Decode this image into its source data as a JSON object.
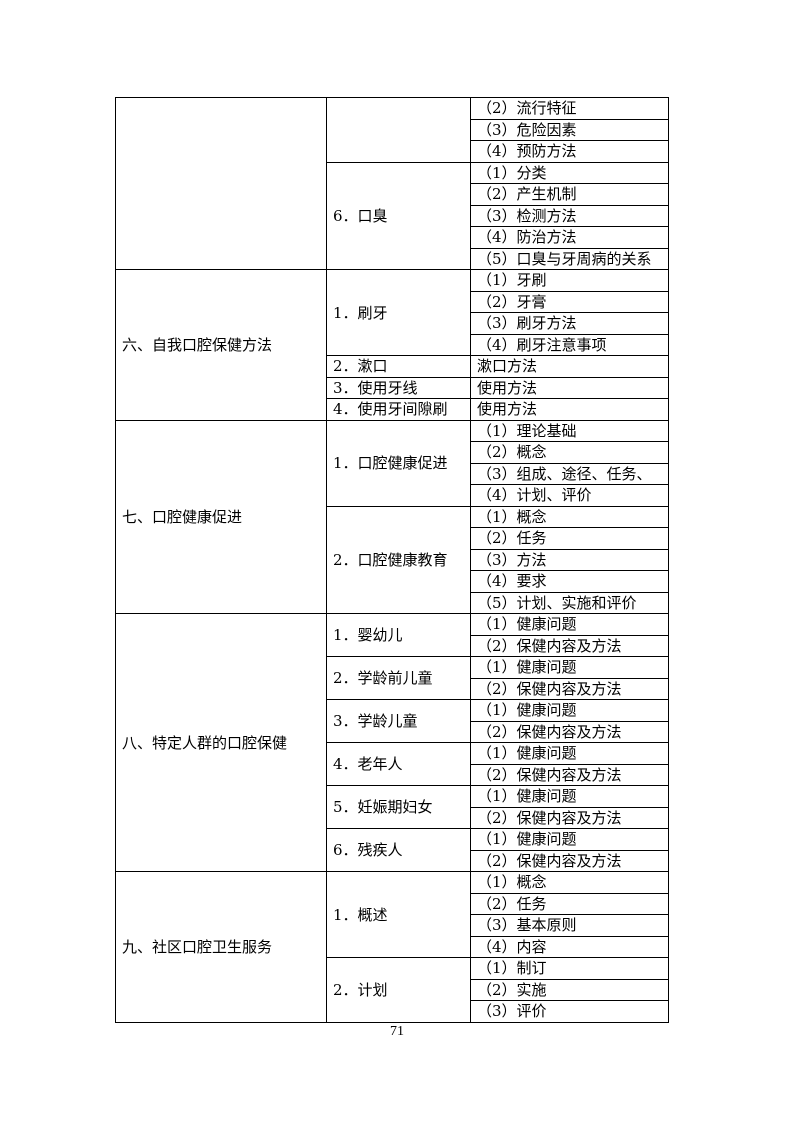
{
  "page_number": "71",
  "table": {
    "sections": [
      {
        "title": "",
        "groups": [
          {
            "label": "",
            "items": [
              "（2）流行特征",
              "（3）危险因素",
              "（4）预防方法"
            ]
          },
          {
            "label": "6．口臭",
            "items": [
              "（1）分类",
              "（2）产生机制",
              "（3）检测方法",
              "（4）防治方法",
              "（5）口臭与牙周病的关系"
            ]
          }
        ]
      },
      {
        "title": "六、自我口腔保健方法",
        "groups": [
          {
            "label": "1．刷牙",
            "items": [
              "（1）牙刷",
              "（2）牙膏",
              "（3）刷牙方法",
              "（4）刷牙注意事项"
            ]
          },
          {
            "label": "2．漱口",
            "items": [
              "漱口方法"
            ]
          },
          {
            "label": "3．使用牙线",
            "items": [
              "使用方法"
            ]
          },
          {
            "label": "4．使用牙间隙刷",
            "items": [
              "使用方法"
            ]
          }
        ]
      },
      {
        "title": "七、口腔健康促进",
        "groups": [
          {
            "label": "1．口腔健康促进",
            "items": [
              "（1）理论基础",
              "（2）概念",
              "（3）组成、途径、任务、",
              "（4）计划、评价"
            ]
          },
          {
            "label": "2．口腔健康教育",
            "items": [
              "（1）概念",
              "（2）任务",
              "（3）方法",
              "（4）要求",
              "（5）计划、实施和评价"
            ]
          }
        ]
      },
      {
        "title": "八、特定人群的口腔保健",
        "groups": [
          {
            "label": "1．婴幼儿",
            "items": [
              "（1）健康问题",
              "（2）保健内容及方法"
            ]
          },
          {
            "label": "2．学龄前儿童",
            "items": [
              "（1）健康问题",
              "（2）保健内容及方法"
            ]
          },
          {
            "label": "3．学龄儿童",
            "items": [
              "（1）健康问题",
              "（2）保健内容及方法"
            ]
          },
          {
            "label": "4．老年人",
            "items": [
              "（1）健康问题",
              "（2）保健内容及方法"
            ]
          },
          {
            "label": "5．妊娠期妇女",
            "items": [
              "（1）健康问题",
              "（2）保健内容及方法"
            ]
          },
          {
            "label": "6．残疾人",
            "items": [
              "（1）健康问题",
              "（2）保健内容及方法"
            ]
          }
        ]
      },
      {
        "title": "九、社区口腔卫生服务",
        "groups": [
          {
            "label": "1．概述",
            "items": [
              "（1）概念",
              "（2）任务",
              "（3）基本原则",
              "（4）内容"
            ]
          },
          {
            "label": "2．计划",
            "items": [
              "（1）制订",
              "（2）实施",
              "（3）评价"
            ]
          }
        ]
      }
    ]
  }
}
